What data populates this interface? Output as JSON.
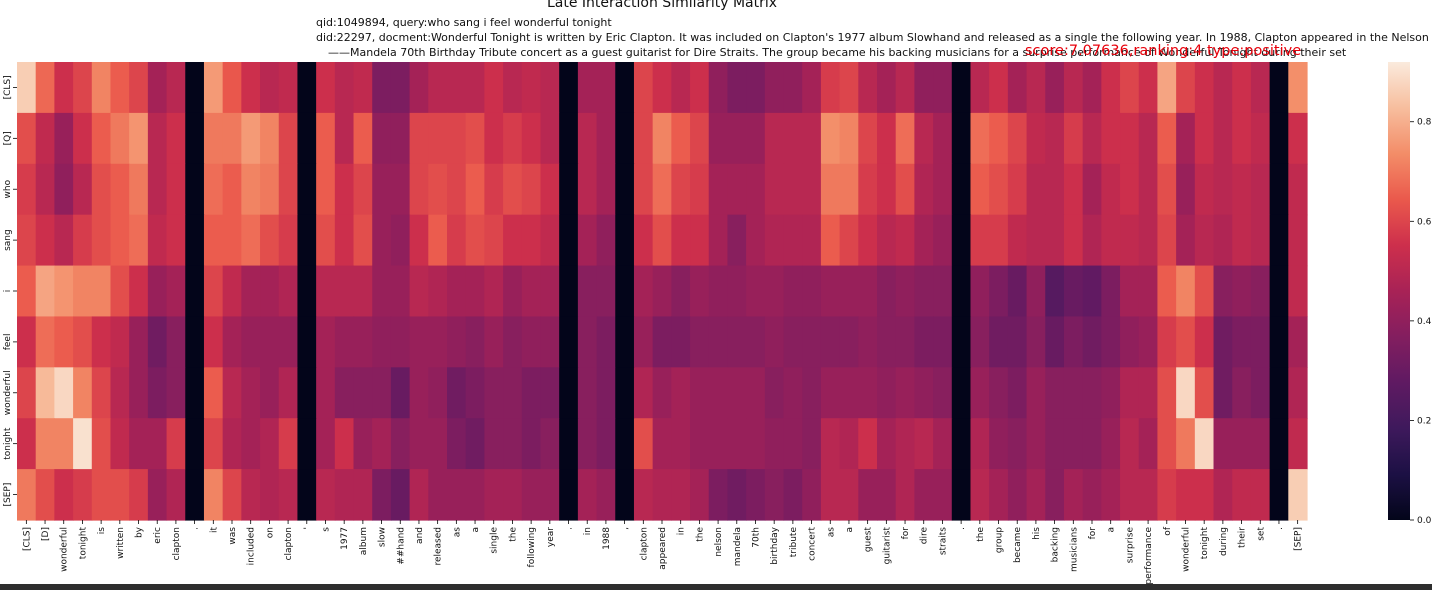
{
  "chart_data": {
    "type": "heatmap",
    "title": "Late Interaction Similarity Matrix",
    "query_info": "qid:1049894, query:who sang i feel wonderful tonight",
    "doc_info_line1": "did:22297, docment:Wonderful Tonight is written by Eric Clapton. It was included on Clapton's 1977 album Slowhand and released as a single the following year. In 1988, Clapton appeared in the Nelson",
    "doc_info_line2": "——Mandela 70th Birthday Tribute concert as a guest guitarist for Dire Straits. The group became his backing musicians for a surprise performance of Wonderful Tonight during their set",
    "score_label": "score:7.07636,ranking:4 type:positive",
    "y_labels": [
      "[CLS]",
      "[Q]",
      "who",
      "sang",
      "i",
      "feel",
      "wonderful",
      "tonight",
      "[SEP]"
    ],
    "x_labels": [
      "[CLS]",
      "[D]",
      "wonderful",
      "tonight",
      "is",
      "written",
      "by",
      "eric",
      "clapton",
      ".",
      "it",
      "was",
      "included",
      "on",
      "clapton",
      "'",
      "s",
      "1977",
      "album",
      "slow",
      "##hand",
      "and",
      "released",
      "as",
      "a",
      "single",
      "the",
      "following",
      "year",
      ".",
      "in",
      "1988",
      ",",
      "clapton",
      "appeared",
      "in",
      "the",
      "nelson",
      "mandela",
      "70th",
      "birthday",
      "tribute",
      "concert",
      "as",
      "a",
      "guest",
      "guitarist",
      "for",
      "dire",
      "straits",
      ".",
      "the",
      "group",
      "became",
      "his",
      "backing",
      "musicians",
      "for",
      "a",
      "surprise",
      "performance",
      "of",
      "wonderful",
      "tonight",
      "during",
      "their",
      "set",
      ".",
      "[SEP]"
    ],
    "colorbar_ticks": [
      "0.0",
      "0.2",
      "0.4",
      "0.6",
      "0.8"
    ],
    "vmin": 0.0,
    "vmax": 0.92,
    "colormap": "rocket",
    "values": [
      [
        0.86,
        0.67,
        0.55,
        0.6,
        0.72,
        0.65,
        0.6,
        0.45,
        0.5,
        0.0,
        0.76,
        0.64,
        0.55,
        0.5,
        0.52,
        0.0,
        0.55,
        0.5,
        0.52,
        0.35,
        0.35,
        0.45,
        0.5,
        0.5,
        0.5,
        0.55,
        0.5,
        0.52,
        0.5,
        0.0,
        0.45,
        0.45,
        0.0,
        0.6,
        0.55,
        0.5,
        0.55,
        0.4,
        0.35,
        0.35,
        0.4,
        0.4,
        0.45,
        0.58,
        0.6,
        0.5,
        0.45,
        0.5,
        0.4,
        0.4,
        0.0,
        0.5,
        0.55,
        0.45,
        0.5,
        0.42,
        0.5,
        0.45,
        0.55,
        0.6,
        0.55,
        0.78,
        0.6,
        0.55,
        0.5,
        0.55,
        0.5,
        0.0,
        0.74
      ],
      [
        0.62,
        0.52,
        0.42,
        0.55,
        0.65,
        0.7,
        0.75,
        0.5,
        0.55,
        0.0,
        0.7,
        0.7,
        0.76,
        0.72,
        0.6,
        0.0,
        0.65,
        0.5,
        0.65,
        0.4,
        0.4,
        0.6,
        0.6,
        0.6,
        0.62,
        0.55,
        0.58,
        0.55,
        0.5,
        0.0,
        0.5,
        0.45,
        0.0,
        0.6,
        0.72,
        0.65,
        0.6,
        0.42,
        0.42,
        0.42,
        0.5,
        0.5,
        0.5,
        0.74,
        0.72,
        0.6,
        0.55,
        0.68,
        0.5,
        0.45,
        0.0,
        0.68,
        0.65,
        0.6,
        0.52,
        0.5,
        0.58,
        0.5,
        0.55,
        0.55,
        0.5,
        0.65,
        0.45,
        0.55,
        0.5,
        0.55,
        0.52,
        0.0,
        0.55
      ],
      [
        0.58,
        0.5,
        0.4,
        0.5,
        0.62,
        0.65,
        0.7,
        0.5,
        0.55,
        0.0,
        0.68,
        0.65,
        0.72,
        0.7,
        0.6,
        0.0,
        0.65,
        0.55,
        0.6,
        0.42,
        0.42,
        0.6,
        0.62,
        0.6,
        0.65,
        0.58,
        0.62,
        0.6,
        0.55,
        0.0,
        0.5,
        0.45,
        0.0,
        0.6,
        0.68,
        0.6,
        0.58,
        0.45,
        0.45,
        0.45,
        0.5,
        0.5,
        0.5,
        0.7,
        0.7,
        0.58,
        0.55,
        0.62,
        0.48,
        0.45,
        0.0,
        0.65,
        0.62,
        0.58,
        0.5,
        0.5,
        0.55,
        0.45,
        0.52,
        0.55,
        0.5,
        0.62,
        0.42,
        0.52,
        0.5,
        0.52,
        0.5,
        0.0,
        0.52
      ],
      [
        0.6,
        0.55,
        0.5,
        0.58,
        0.62,
        0.65,
        0.68,
        0.52,
        0.55,
        0.0,
        0.65,
        0.65,
        0.68,
        0.62,
        0.58,
        0.0,
        0.62,
        0.55,
        0.62,
        0.42,
        0.4,
        0.55,
        0.65,
        0.58,
        0.62,
        0.6,
        0.55,
        0.55,
        0.52,
        0.0,
        0.45,
        0.4,
        0.0,
        0.55,
        0.62,
        0.55,
        0.55,
        0.45,
        0.38,
        0.45,
        0.48,
        0.48,
        0.48,
        0.65,
        0.6,
        0.55,
        0.5,
        0.52,
        0.45,
        0.42,
        0.0,
        0.58,
        0.58,
        0.52,
        0.5,
        0.5,
        0.55,
        0.48,
        0.52,
        0.52,
        0.5,
        0.6,
        0.45,
        0.5,
        0.48,
        0.52,
        0.5,
        0.0,
        0.52
      ],
      [
        0.65,
        0.78,
        0.75,
        0.72,
        0.72,
        0.62,
        0.55,
        0.42,
        0.45,
        0.0,
        0.6,
        0.52,
        0.45,
        0.45,
        0.48,
        0.0,
        0.5,
        0.5,
        0.5,
        0.42,
        0.42,
        0.5,
        0.48,
        0.45,
        0.45,
        0.48,
        0.42,
        0.45,
        0.45,
        0.0,
        0.38,
        0.38,
        0.0,
        0.45,
        0.42,
        0.38,
        0.42,
        0.4,
        0.4,
        0.42,
        0.42,
        0.4,
        0.4,
        0.42,
        0.42,
        0.42,
        0.38,
        0.4,
        0.38,
        0.38,
        0.0,
        0.4,
        0.35,
        0.3,
        0.4,
        0.25,
        0.3,
        0.28,
        0.35,
        0.45,
        0.45,
        0.65,
        0.72,
        0.62,
        0.38,
        0.4,
        0.38,
        0.0,
        0.52
      ],
      [
        0.55,
        0.68,
        0.65,
        0.62,
        0.55,
        0.52,
        0.42,
        0.32,
        0.38,
        0.0,
        0.55,
        0.45,
        0.42,
        0.42,
        0.42,
        0.0,
        0.45,
        0.42,
        0.42,
        0.4,
        0.4,
        0.42,
        0.42,
        0.4,
        0.38,
        0.42,
        0.38,
        0.4,
        0.4,
        0.0,
        0.38,
        0.35,
        0.0,
        0.42,
        0.35,
        0.35,
        0.38,
        0.38,
        0.38,
        0.38,
        0.4,
        0.38,
        0.38,
        0.38,
        0.38,
        0.4,
        0.38,
        0.38,
        0.35,
        0.35,
        0.0,
        0.38,
        0.32,
        0.32,
        0.38,
        0.3,
        0.35,
        0.32,
        0.35,
        0.4,
        0.42,
        0.58,
        0.62,
        0.55,
        0.32,
        0.35,
        0.35,
        0.0,
        0.45
      ],
      [
        0.6,
        0.82,
        0.88,
        0.72,
        0.6,
        0.5,
        0.42,
        0.35,
        0.38,
        0.0,
        0.65,
        0.5,
        0.45,
        0.42,
        0.48,
        0.0,
        0.45,
        0.38,
        0.38,
        0.38,
        0.3,
        0.42,
        0.4,
        0.32,
        0.35,
        0.38,
        0.38,
        0.35,
        0.35,
        0.0,
        0.38,
        0.35,
        0.0,
        0.48,
        0.42,
        0.45,
        0.42,
        0.42,
        0.42,
        0.42,
        0.38,
        0.4,
        0.38,
        0.42,
        0.42,
        0.42,
        0.4,
        0.42,
        0.4,
        0.38,
        0.0,
        0.42,
        0.38,
        0.35,
        0.42,
        0.38,
        0.38,
        0.38,
        0.4,
        0.48,
        0.48,
        0.62,
        0.88,
        0.62,
        0.32,
        0.38,
        0.35,
        0.0,
        0.48
      ],
      [
        0.55,
        0.72,
        0.72,
        0.9,
        0.62,
        0.52,
        0.45,
        0.45,
        0.58,
        0.0,
        0.6,
        0.48,
        0.45,
        0.48,
        0.58,
        0.0,
        0.45,
        0.55,
        0.42,
        0.45,
        0.38,
        0.42,
        0.42,
        0.35,
        0.32,
        0.38,
        0.38,
        0.35,
        0.38,
        0.0,
        0.38,
        0.35,
        0.0,
        0.62,
        0.45,
        0.45,
        0.42,
        0.42,
        0.42,
        0.42,
        0.4,
        0.4,
        0.38,
        0.5,
        0.48,
        0.55,
        0.45,
        0.48,
        0.5,
        0.45,
        0.0,
        0.48,
        0.4,
        0.38,
        0.42,
        0.38,
        0.38,
        0.38,
        0.42,
        0.5,
        0.45,
        0.62,
        0.7,
        0.88,
        0.42,
        0.42,
        0.42,
        0.0,
        0.52
      ],
      [
        0.7,
        0.62,
        0.55,
        0.58,
        0.62,
        0.62,
        0.58,
        0.42,
        0.48,
        0.0,
        0.72,
        0.6,
        0.5,
        0.48,
        0.5,
        0.0,
        0.5,
        0.48,
        0.48,
        0.35,
        0.3,
        0.48,
        0.42,
        0.42,
        0.42,
        0.45,
        0.45,
        0.42,
        0.42,
        0.0,
        0.45,
        0.42,
        0.0,
        0.5,
        0.48,
        0.48,
        0.45,
        0.35,
        0.32,
        0.35,
        0.38,
        0.35,
        0.4,
        0.5,
        0.5,
        0.42,
        0.42,
        0.48,
        0.42,
        0.42,
        0.0,
        0.5,
        0.45,
        0.4,
        0.45,
        0.38,
        0.45,
        0.42,
        0.45,
        0.5,
        0.5,
        0.58,
        0.55,
        0.55,
        0.48,
        0.52,
        0.52,
        0.0,
        0.86
      ]
    ]
  }
}
